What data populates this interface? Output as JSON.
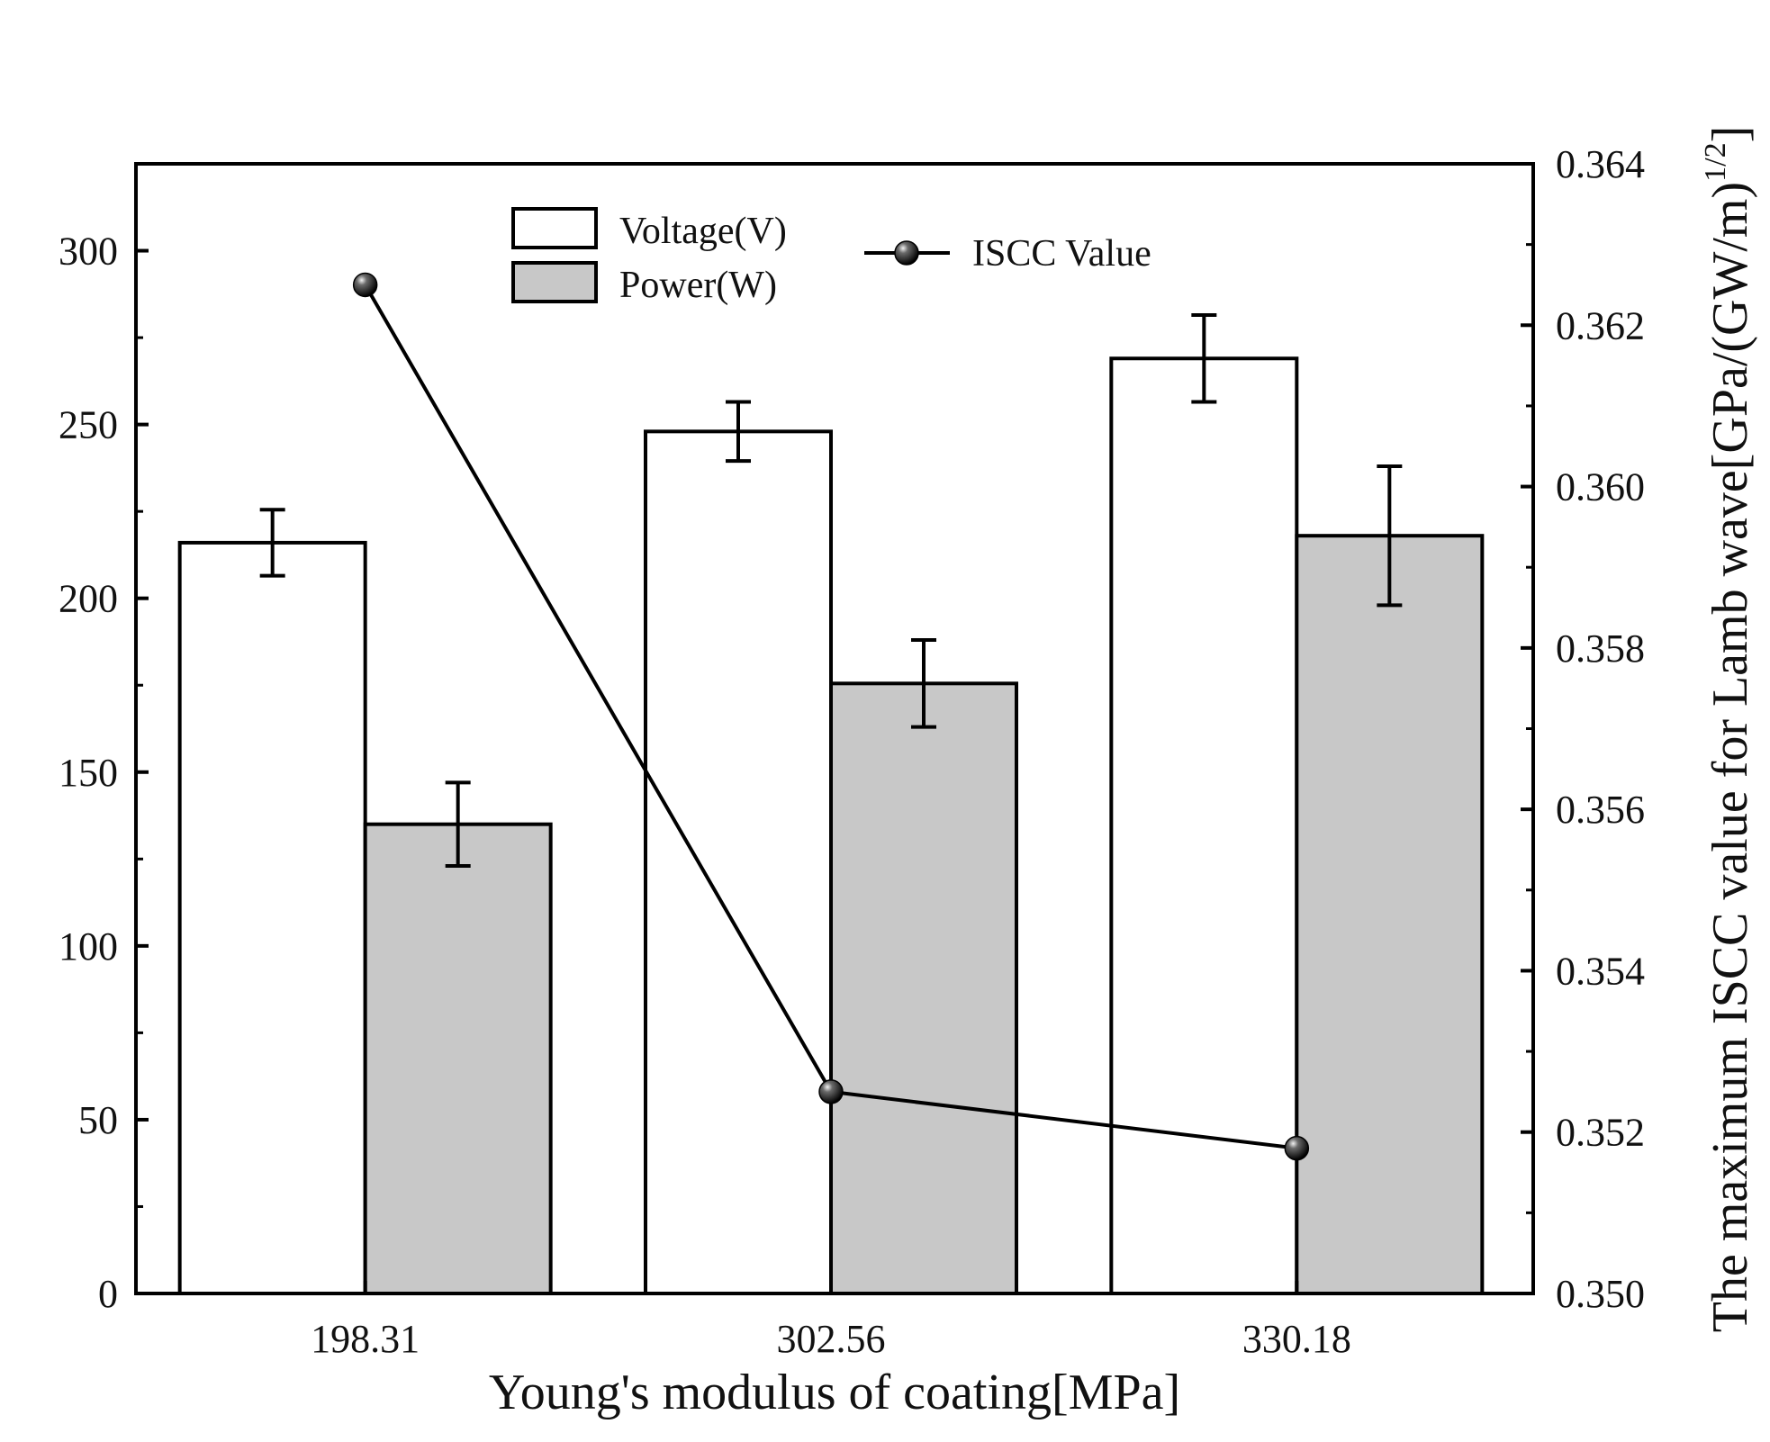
{
  "chart_data": {
    "type": "bar",
    "categories": [
      "198.31",
      "302.56",
      "330.18"
    ],
    "xlabel": "Young's modulus of coating[MPa]",
    "ylabel_left": "",
    "ylabel_right_prefix": "The maximum ISCC value for Lamb wave[GPa/(GW/m)",
    "ylabel_right_sup": "1/2",
    "ylabel_right_suffix": "]",
    "ylim_left": [
      0,
      325
    ],
    "yticks_left": [
      0,
      50,
      100,
      150,
      200,
      250,
      300
    ],
    "yticklabels_left": [
      "0",
      "50",
      "100",
      "150",
      "200",
      "250",
      "300"
    ],
    "ylim_right": [
      0.35,
      0.364
    ],
    "yticks_right": [
      0.35,
      0.352,
      0.354,
      0.356,
      0.358,
      0.36,
      0.362,
      0.364
    ],
    "yticklabels_right": [
      "0.350",
      "0.352",
      "0.354",
      "0.356",
      "0.358",
      "0.360",
      "0.362",
      "0.364"
    ],
    "series": [
      {
        "name": "Voltage(V)",
        "kind": "bar",
        "axis": "left",
        "fill": "#ffffff",
        "values": [
          216,
          248,
          269
        ],
        "errors": [
          9.5,
          8.5,
          12.5
        ]
      },
      {
        "name": "Power(W)",
        "kind": "bar",
        "axis": "left",
        "fill": "#c8c8c8",
        "values": [
          135,
          175.5,
          218
        ],
        "errors": [
          12,
          12.5,
          20
        ]
      },
      {
        "name": "ISCC Value",
        "kind": "line",
        "axis": "right",
        "color": "#000000",
        "values": [
          0.3625,
          0.3525,
          0.3518
        ]
      }
    ],
    "legend": [
      {
        "label": "Voltage(V)",
        "swatch": "#ffffff"
      },
      {
        "label": "Power(W)",
        "swatch": "#c8c8c8"
      },
      {
        "label": "ISCC Value",
        "swatch": "line-marker"
      }
    ],
    "legend_position": "top-center",
    "grid": false
  }
}
